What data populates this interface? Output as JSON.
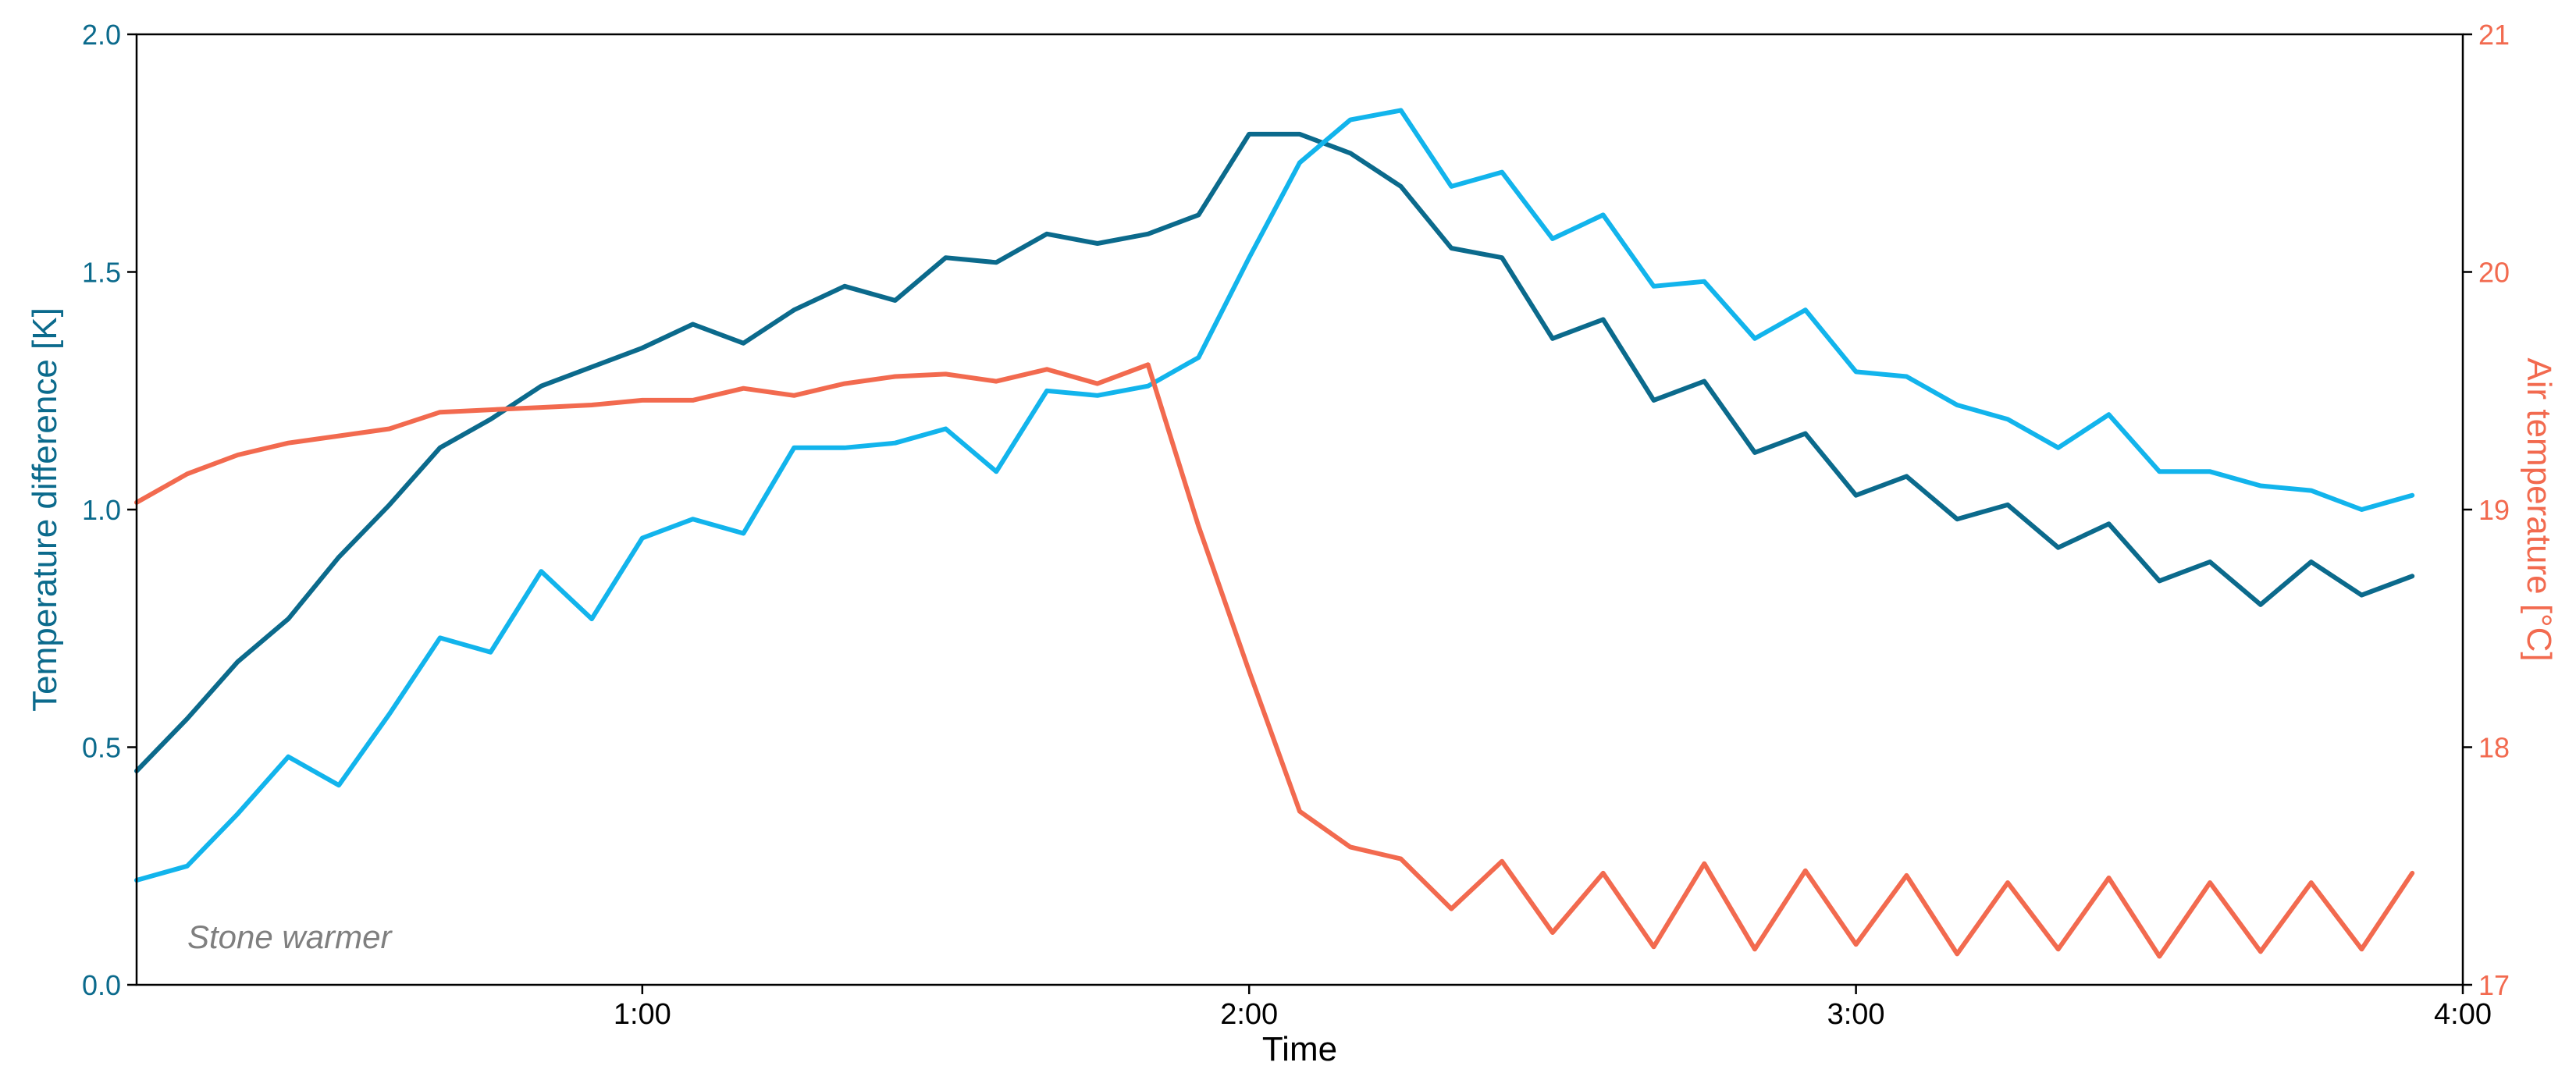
{
  "chart_data": {
    "type": "line",
    "annotation": "Stone warmer",
    "xlabel": "Time",
    "ylabel_left": "Temperature difference [K]",
    "ylabel_right": "Air temperature [°C]",
    "grid": false,
    "x_range": [
      10,
      240
    ],
    "x_ticks": [
      60,
      120,
      180,
      240
    ],
    "x_tick_labels": [
      "1:00",
      "2:00",
      "3:00",
      "4:00"
    ],
    "y_left": {
      "range": [
        0,
        2
      ],
      "ticks": [
        0,
        0.5,
        1,
        1.5,
        2
      ],
      "tick_labels": [
        "0.0",
        "0.5",
        "1.0",
        "1.5",
        "2.0"
      ]
    },
    "y_right": {
      "range": [
        17,
        21
      ],
      "ticks": [
        17,
        18,
        19,
        20,
        21
      ],
      "tick_labels": [
        "17",
        "18",
        "19",
        "20",
        "21"
      ]
    },
    "colors": {
      "dark_blue": "#0b6a8c",
      "light_blue": "#12b4ec",
      "orange": "#f26a4f",
      "left_axis": "#0b6a8c",
      "right_axis": "#f26a4f",
      "annotation": "#7f7f7f"
    },
    "series": [
      {
        "axis": "left",
        "color": "#0b6a8c",
        "x": [
          10,
          15,
          20,
          25,
          30,
          35,
          40,
          45,
          50,
          55,
          60,
          65,
          70,
          75,
          80,
          85,
          90,
          95,
          100,
          105,
          110,
          115,
          120,
          125,
          130,
          135,
          140,
          145,
          150,
          155,
          160,
          165,
          170,
          175,
          180,
          185,
          190,
          195,
          200,
          205,
          210,
          215,
          220,
          225,
          230,
          235
        ],
        "y": [
          0.45,
          0.56,
          0.68,
          0.77,
          0.9,
          1.01,
          1.13,
          1.19,
          1.26,
          1.3,
          1.34,
          1.39,
          1.35,
          1.42,
          1.47,
          1.44,
          1.53,
          1.52,
          1.58,
          1.56,
          1.58,
          1.62,
          1.79,
          1.79,
          1.75,
          1.68,
          1.55,
          1.53,
          1.36,
          1.4,
          1.23,
          1.27,
          1.12,
          1.16,
          1.03,
          1.07,
          0.98,
          1.01,
          0.92,
          0.97,
          0.85,
          0.89,
          0.8,
          0.89,
          0.82,
          0.86
        ]
      },
      {
        "axis": "left",
        "color": "#12b4ec",
        "x": [
          10,
          15,
          20,
          25,
          30,
          35,
          40,
          45,
          50,
          55,
          60,
          65,
          70,
          75,
          80,
          85,
          90,
          95,
          100,
          105,
          110,
          115,
          120,
          125,
          130,
          135,
          140,
          145,
          150,
          155,
          160,
          165,
          170,
          175,
          180,
          185,
          190,
          195,
          200,
          205,
          210,
          215,
          220,
          225,
          230,
          235
        ],
        "y": [
          0.22,
          0.25,
          0.36,
          0.48,
          0.42,
          0.57,
          0.73,
          0.7,
          0.87,
          0.77,
          0.94,
          0.98,
          0.95,
          1.13,
          1.13,
          1.14,
          1.17,
          1.08,
          1.25,
          1.24,
          1.26,
          1.32,
          1.53,
          1.73,
          1.82,
          1.84,
          1.68,
          1.71,
          1.57,
          1.62,
          1.47,
          1.48,
          1.36,
          1.42,
          1.29,
          1.28,
          1.22,
          1.19,
          1.13,
          1.2,
          1.08,
          1.08,
          1.05,
          1.04,
          1.0,
          1.03
        ]
      },
      {
        "axis": "right",
        "color": "#f26a4f",
        "x": [
          10,
          15,
          20,
          25,
          30,
          35,
          40,
          45,
          50,
          55,
          60,
          65,
          70,
          75,
          80,
          85,
          90,
          95,
          100,
          105,
          110,
          115,
          120,
          125,
          130,
          135,
          140,
          145,
          150,
          155,
          160,
          165,
          170,
          175,
          180,
          185,
          190,
          195,
          200,
          205,
          210,
          215,
          220,
          225,
          230,
          235
        ],
        "y": [
          19.03,
          19.15,
          19.23,
          19.28,
          19.31,
          19.34,
          19.41,
          19.42,
          19.43,
          19.44,
          19.46,
          19.46,
          19.51,
          19.48,
          19.53,
          19.56,
          19.57,
          19.54,
          19.59,
          19.53,
          19.61,
          18.93,
          18.32,
          17.73,
          17.58,
          17.53,
          17.32,
          17.52,
          17.22,
          17.47,
          17.16,
          17.51,
          17.15,
          17.48,
          17.17,
          17.46,
          17.13,
          17.43,
          17.15,
          17.45,
          17.12,
          17.43,
          17.14,
          17.43,
          17.15,
          17.47
        ]
      }
    ]
  }
}
